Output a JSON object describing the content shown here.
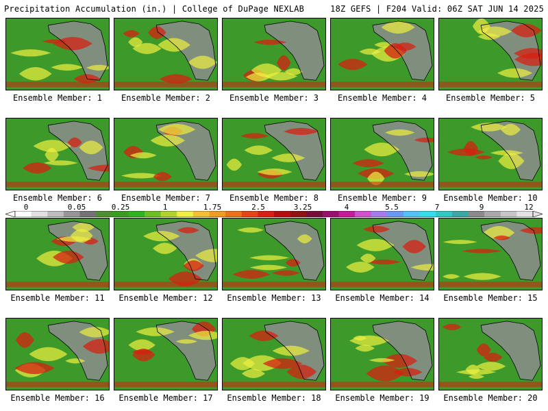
{
  "header": {
    "left": "Precipitation Accumulation (in.) | College of DuPage NEXLAB",
    "right": "18Z GEFS | F204 Valid: 06Z SAT JUN 14 2025"
  },
  "members": [
    {
      "label": "Ensemble Member: 1"
    },
    {
      "label": "Ensemble Member: 2"
    },
    {
      "label": "Ensemble Member: 3"
    },
    {
      "label": "Ensemble Member: 4"
    },
    {
      "label": "Ensemble Member: 5"
    },
    {
      "label": "Ensemble Member: 6"
    },
    {
      "label": "Ensemble Member: 7"
    },
    {
      "label": "Ensemble Member: 8"
    },
    {
      "label": "Ensemble Member: 9"
    },
    {
      "label": "Ensemble Member: 10"
    },
    {
      "label": "Ensemble Member: 11"
    },
    {
      "label": "Ensemble Member: 12"
    },
    {
      "label": "Ensemble Member: 13"
    },
    {
      "label": "Ensemble Member: 14"
    },
    {
      "label": "Ensemble Member: 15"
    },
    {
      "label": "Ensemble Member: 16"
    },
    {
      "label": "Ensemble Member: 17"
    },
    {
      "label": "Ensemble Member: 18"
    },
    {
      "label": "Ensemble Member: 19"
    },
    {
      "label": "Ensemble Member: 20"
    }
  ],
  "colorbar": {
    "labels": [
      "0",
      "0.05",
      "0.25",
      "1",
      "1.75",
      "2.5",
      "3.25",
      "4",
      "5.5",
      "7",
      "9",
      "12"
    ],
    "colors": [
      "#ffffff",
      "#e0e0e0",
      "#bdbdbd",
      "#969696",
      "#737373",
      "#4e8f2e",
      "#3a9d1f",
      "#2fb41c",
      "#6bc21e",
      "#b0d42a",
      "#f0f040",
      "#f8c030",
      "#f79a21",
      "#f07018",
      "#e84315",
      "#d62012",
      "#b70d0d",
      "#941010",
      "#7a0b3a",
      "#a10b6b",
      "#c61a9a",
      "#d44fd0",
      "#a37cf0",
      "#6c98f5",
      "#4fc3f7",
      "#33dde9",
      "#2fc9c2",
      "#3aa8a2",
      "#8a8a8a",
      "#a9a9a9",
      "#c6c6c6",
      "#e3e3e3"
    ]
  },
  "map_colors": {
    "ocean": "#3d9a2a",
    "land": "#8c8c8c",
    "heavy": "#f0f040",
    "extreme": "#d62012"
  }
}
